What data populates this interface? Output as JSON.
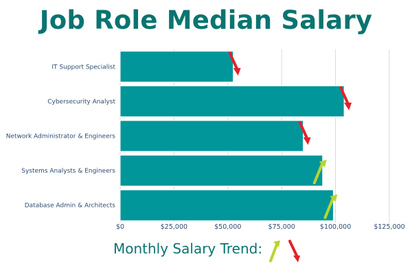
{
  "title": "Job Role Median Salary",
  "colors": {
    "title": "#0a7470",
    "bar": "#00969a",
    "bar_edge": "#ffffff",
    "label": "#2e4b6e",
    "grid": "#d9d9d9",
    "trend_up": "#b7d531",
    "trend_down": "#e3222b",
    "legend_text": "#0a7470"
  },
  "chart_data": {
    "type": "bar",
    "orientation": "horizontal",
    "title": "Job Role Median Salary",
    "categories": [
      "IT Support Specialist",
      "Cybersecurity Analyst",
      "Network Administrator & Engineers",
      "Systems Analysts & Engineers",
      "Database Admin & Architects"
    ],
    "values": [
      52500,
      104000,
      85000,
      94000,
      99000
    ],
    "trend": [
      "down",
      "down",
      "down",
      "up",
      "up"
    ],
    "xlim": [
      0,
      125000
    ],
    "xticks": [
      0,
      25000,
      50000,
      75000,
      100000,
      125000
    ],
    "xtick_labels": [
      "$0",
      "$25,000",
      "$50,000",
      "$75,000",
      "$100,000",
      "$125,000"
    ],
    "grid": "vertical",
    "legend_position": "bottom-center"
  },
  "legend": {
    "label": "Monthly Salary Trend:",
    "items": [
      {
        "direction": "up",
        "icon": "arrow-up-icon"
      },
      {
        "direction": "down",
        "icon": "arrow-down-icon"
      }
    ]
  }
}
